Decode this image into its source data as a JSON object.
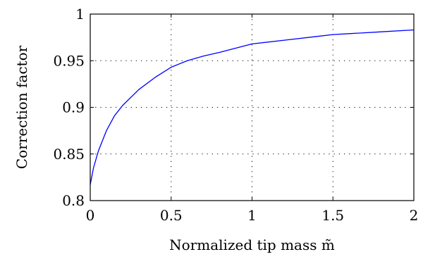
{
  "chart_data": {
    "type": "line",
    "xlabel": "Normalized tip mass m̃",
    "ylabel": "Correction factor",
    "xlim": [
      0,
      2
    ],
    "ylim": [
      0.8,
      1
    ],
    "x_ticks": [
      {
        "value": 0,
        "label": "0"
      },
      {
        "value": 0.5,
        "label": "0.5"
      },
      {
        "value": 1,
        "label": "1"
      },
      {
        "value": 1.5,
        "label": "1.5"
      },
      {
        "value": 2,
        "label": "2"
      }
    ],
    "y_ticks": [
      {
        "value": 0.8,
        "label": "0.8"
      },
      {
        "value": 0.85,
        "label": "0.85"
      },
      {
        "value": 0.9,
        "label": "0.9"
      },
      {
        "value": 0.95,
        "label": "0.95"
      },
      {
        "value": 1,
        "label": "1"
      }
    ],
    "grid": "dotted",
    "series": [
      {
        "color": "#0000ff",
        "x": [
          0,
          0.02,
          0.05,
          0.1,
          0.15,
          0.2,
          0.3,
          0.4,
          0.5,
          0.6,
          0.7,
          0.8,
          1.0,
          1.2,
          1.4,
          1.5,
          1.6,
          1.8,
          2.0
        ],
        "y": [
          0.817,
          0.835,
          0.853,
          0.875,
          0.891,
          0.902,
          0.919,
          0.932,
          0.943,
          0.95,
          0.955,
          0.959,
          0.968,
          0.972,
          0.976,
          0.978,
          0.979,
          0.981,
          0.983
        ]
      }
    ]
  }
}
